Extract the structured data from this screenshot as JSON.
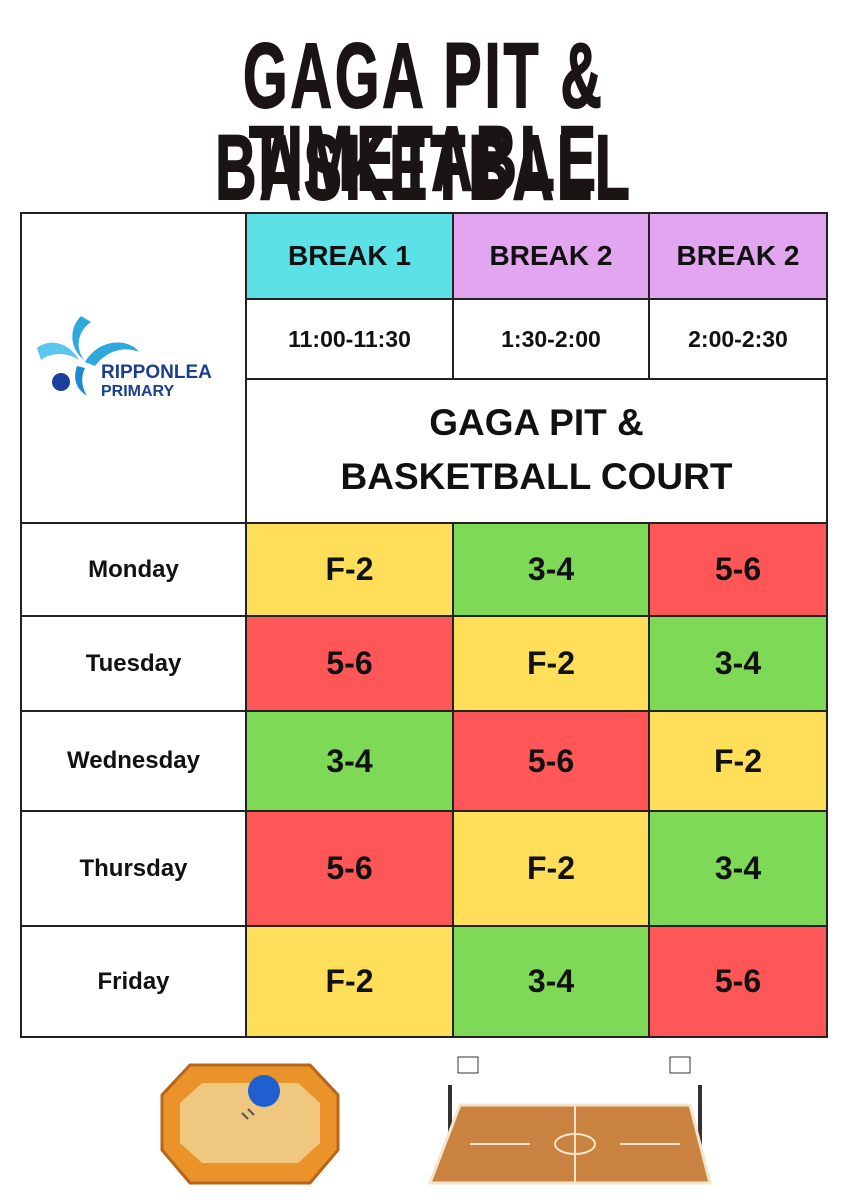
{
  "header": {
    "title_line_1": "GAGA PIT & BASKETBALL",
    "title_line_2": "TIMETABLE"
  },
  "logo": {
    "name": "RIPPONLEA",
    "subtitle": "PRIMARY"
  },
  "table": {
    "breaks": [
      {
        "name": "BREAK 1",
        "time": "11:00-11:30",
        "color": "#5ce1e6"
      },
      {
        "name": "BREAK 2",
        "time": "1:30-2:00",
        "color": "#e2a6f0"
      },
      {
        "name": "BREAK 2",
        "time": "2:00-2:30",
        "color": "#e2a6f0"
      }
    ],
    "venue": "GAGA PIT & BASKETBALL COURT",
    "rows": [
      {
        "day": "Monday",
        "cells": [
          {
            "label": "F-2",
            "color": "#ffde59"
          },
          {
            "label": "3-4",
            "color": "#7ed957"
          },
          {
            "label": "5-6",
            "color": "#ff5757"
          }
        ]
      },
      {
        "day": "Tuesday",
        "cells": [
          {
            "label": "5-6",
            "color": "#ff5757"
          },
          {
            "label": "F-2",
            "color": "#ffde59"
          },
          {
            "label": "3-4",
            "color": "#7ed957"
          }
        ]
      },
      {
        "day": "Wednesday",
        "cells": [
          {
            "label": "3-4",
            "color": "#7ed957"
          },
          {
            "label": "5-6",
            "color": "#ff5757"
          },
          {
            "label": "F-2",
            "color": "#ffde59"
          }
        ]
      },
      {
        "day": "Thursday",
        "cells": [
          {
            "label": "5-6",
            "color": "#ff5757"
          },
          {
            "label": "F-2",
            "color": "#ffde59"
          },
          {
            "label": "3-4",
            "color": "#7ed957"
          }
        ]
      },
      {
        "day": "Friday",
        "cells": [
          {
            "label": "F-2",
            "color": "#ffde59"
          },
          {
            "label": "3-4",
            "color": "#7ed957"
          },
          {
            "label": "5-6",
            "color": "#ff5757"
          }
        ]
      }
    ]
  }
}
